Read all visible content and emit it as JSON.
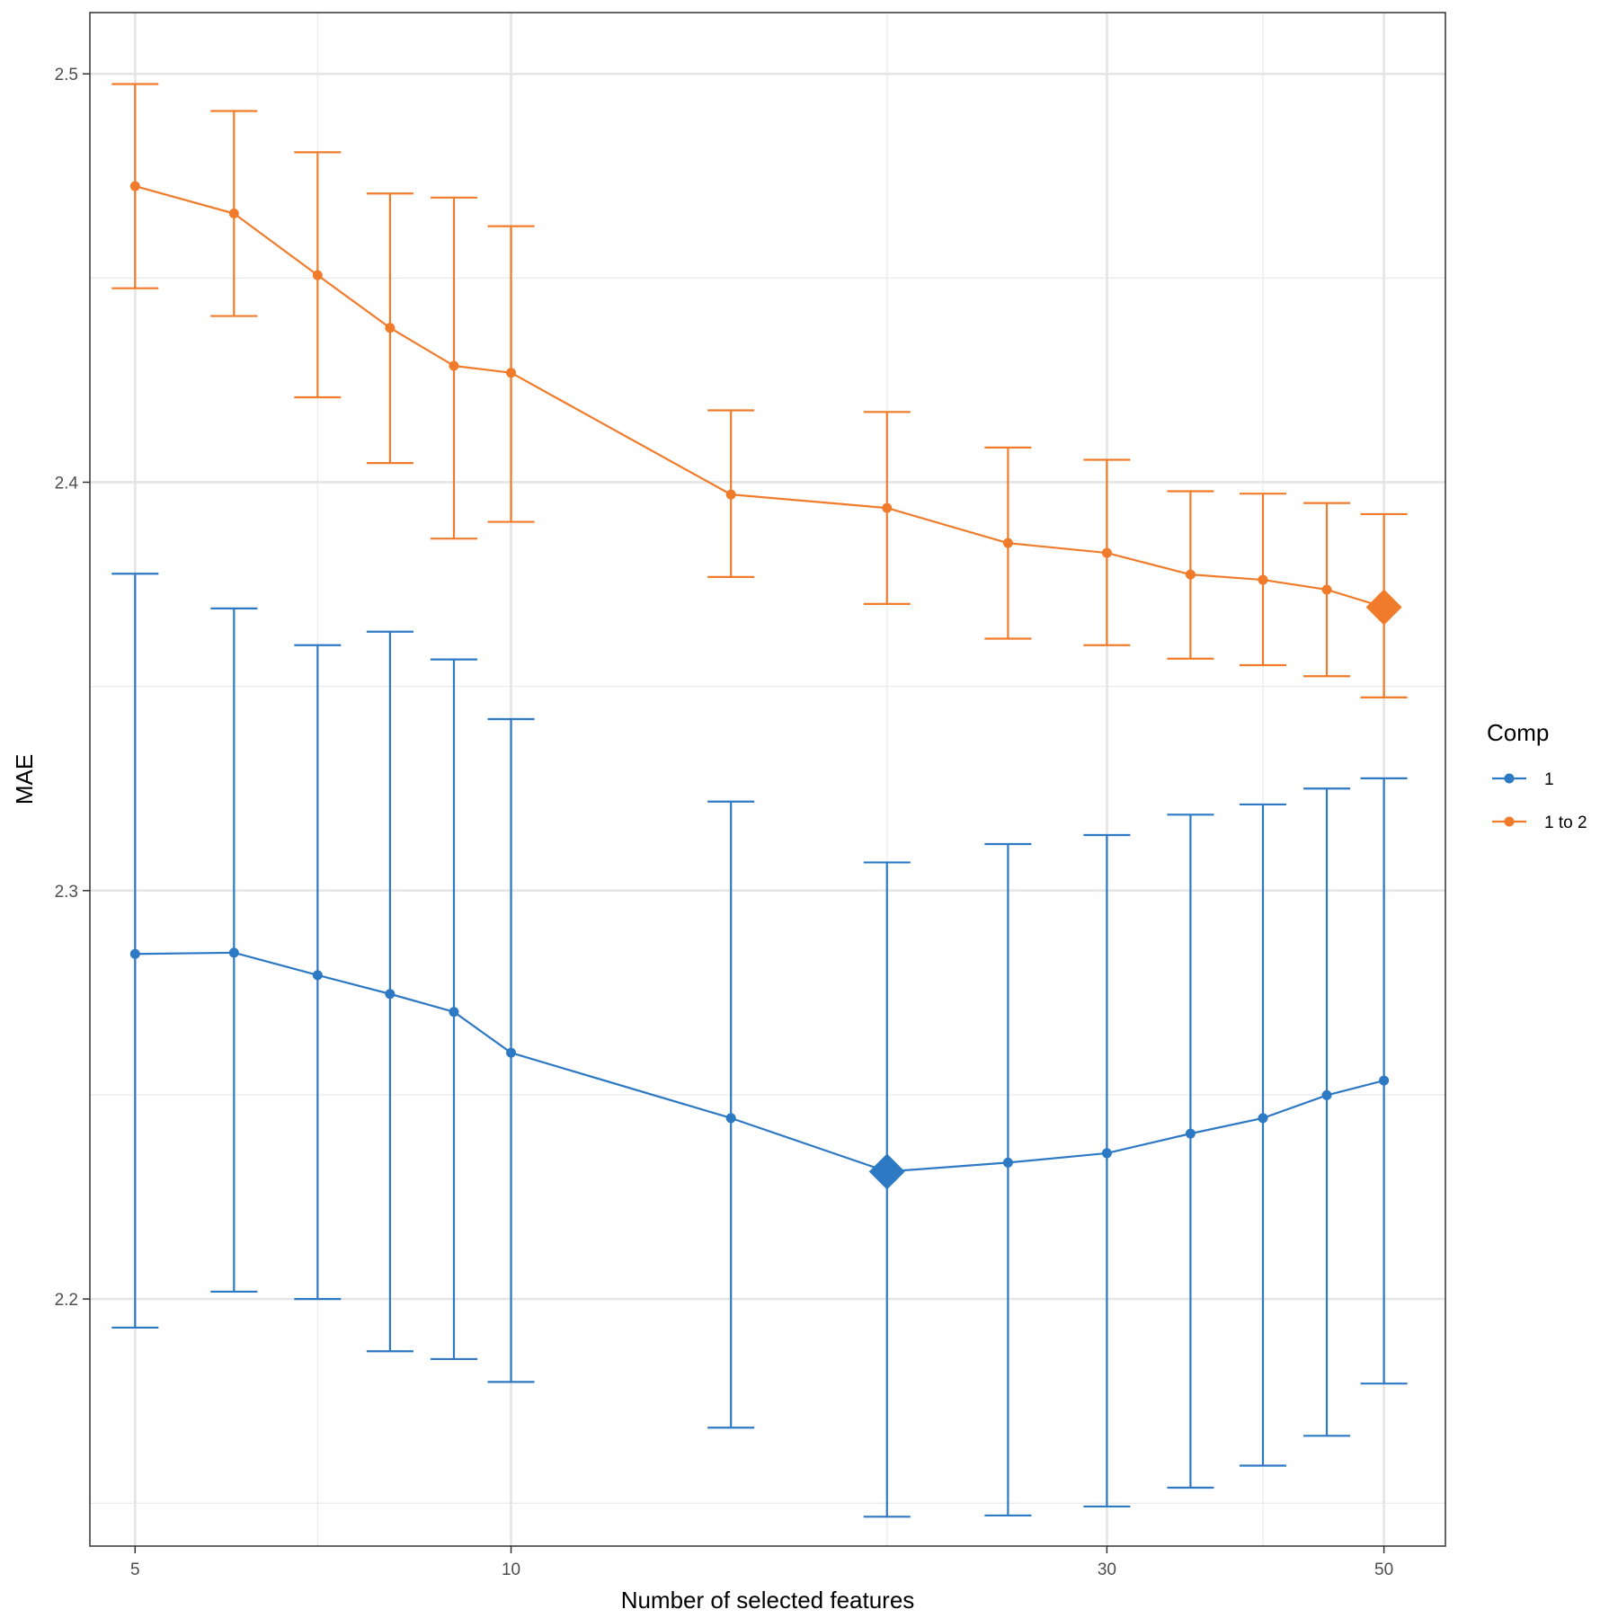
{
  "chart_data": {
    "type": "line",
    "title": "",
    "xlabel": "Number of selected features",
    "ylabel": "MAE",
    "x_scale": "log",
    "xlim": [
      4.6,
      56
    ],
    "ylim": [
      2.1395,
      2.515
    ],
    "x_ticks": [
      5,
      10,
      30,
      50
    ],
    "x_tick_labels": [
      "5",
      "10",
      "30",
      "50"
    ],
    "x_minor_gridlines": [
      7,
      20,
      40
    ],
    "y_ticks": [
      2.2,
      2.3,
      2.4,
      2.5
    ],
    "y_tick_labels": [
      "2.2",
      "2.3",
      "2.4",
      "2.5"
    ],
    "y_minor_gridlines": [
      2.15,
      2.25,
      2.35,
      2.45
    ],
    "grid": true,
    "legend": {
      "title": "Comp",
      "position": "right"
    },
    "x": [
      5,
      6,
      7,
      8,
      9,
      10,
      15,
      20,
      25,
      30,
      35,
      40,
      45,
      50
    ],
    "series": [
      {
        "name": "1",
        "color": "#2E79C4",
        "values": [
          2.2845,
          2.2848,
          2.2793,
          2.2747,
          2.2703,
          2.2603,
          2.2443,
          2.2312,
          2.2334,
          2.2357,
          2.2405,
          2.2443,
          2.2499,
          2.2535
        ],
        "lower": [
          2.193,
          2.2018,
          2.2,
          2.1872,
          2.1853,
          2.1797,
          2.1685,
          2.1467,
          2.147,
          2.1492,
          2.1538,
          2.1592,
          2.1665,
          2.1793
        ],
        "upper": [
          2.3776,
          2.3691,
          2.3601,
          2.3634,
          2.3566,
          2.342,
          2.3218,
          2.3069,
          2.3114,
          2.3136,
          2.3186,
          2.3211,
          2.325,
          2.3275
        ],
        "best_x": 20
      },
      {
        "name": "1 to 2",
        "color": "#F07C2B",
        "values": [
          2.4725,
          2.4658,
          2.4507,
          2.4378,
          2.4285,
          2.4268,
          2.397,
          2.3937,
          2.3851,
          2.3827,
          2.3774,
          2.3761,
          2.3737,
          2.3694
        ],
        "lower": [
          2.4475,
          2.4407,
          2.4208,
          2.4047,
          2.3862,
          2.3903,
          2.3768,
          2.3702,
          2.3617,
          2.3601,
          2.3568,
          2.3552,
          2.3525,
          2.3473
        ],
        "upper": [
          2.4975,
          2.4909,
          2.4808,
          2.4707,
          2.4697,
          2.4627,
          2.4176,
          2.4172,
          2.4085,
          2.4055,
          2.3978,
          2.3972,
          2.3949,
          2.3922
        ],
        "best_x": 50
      }
    ]
  }
}
